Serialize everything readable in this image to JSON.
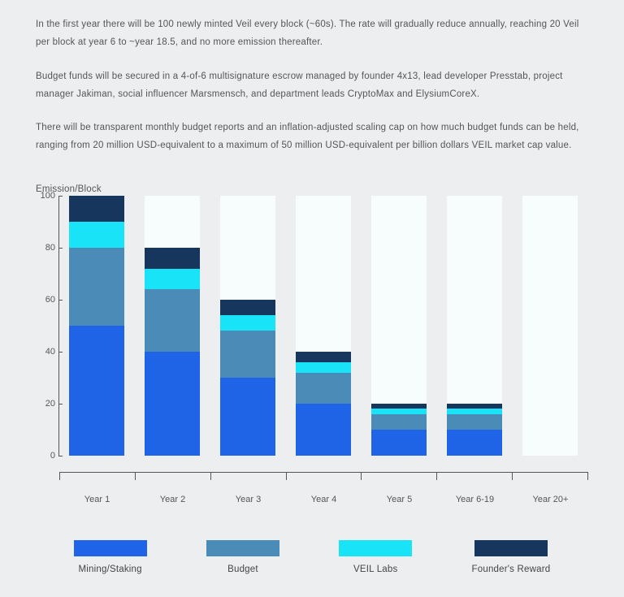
{
  "paragraphs": [
    "In the first year there will be 100 newly minted Veil every block (~60s). The rate will gradually reduce annually, reaching 20 Veil per block at year 6 to ~year 18.5, and no more emission thereafter.",
    "Budget funds will be secured in a 4-of-6 multisignature escrow managed by founder 4x13, lead developer Presstab, project manager Jakiman, social influencer Marsmensch, and department leads CryptoMax and ElysiumCoreX.",
    "There will be transparent monthly budget reports and an inflation-adjusted scaling cap on how much budget funds can be held, ranging from 20 million USD-equivalent to a maximum of 50 million USD-equivalent per billion dollars VEIL market cap value."
  ],
  "chart": {
    "type": "stacked-bar",
    "y_label": "Emission/Block",
    "ylim": [
      0,
      100
    ],
    "yticks": [
      0,
      20,
      40,
      60,
      80,
      100
    ],
    "background_color": "#eceef0",
    "ghost_color": "#f7fcfd",
    "axis_color": "#555555",
    "bar_width_ratio": 0.86,
    "categories": [
      "Year 1",
      "Year 2",
      "Year 3",
      "Year 4",
      "Year 5",
      "Year 6-19",
      "Year 20+"
    ],
    "series": [
      {
        "name": "Mining/Staking",
        "color": "#1f63e6"
      },
      {
        "name": "Budget",
        "color": "#4a8bb8"
      },
      {
        "name": "VEIL Labs",
        "color": "#19e4f7"
      },
      {
        "name": "Founder's Reward",
        "color": "#16365e"
      }
    ],
    "stacks": [
      [
        50,
        30,
        10,
        10
      ],
      [
        40,
        24,
        8,
        8
      ],
      [
        30,
        18,
        6,
        6
      ],
      [
        20,
        12,
        4,
        4
      ],
      [
        10,
        6,
        2,
        2
      ],
      [
        10,
        6,
        2,
        2
      ],
      [
        0,
        0,
        0,
        0
      ]
    ],
    "label_fontsize": 11.5,
    "tick_fontsize": 11
  }
}
